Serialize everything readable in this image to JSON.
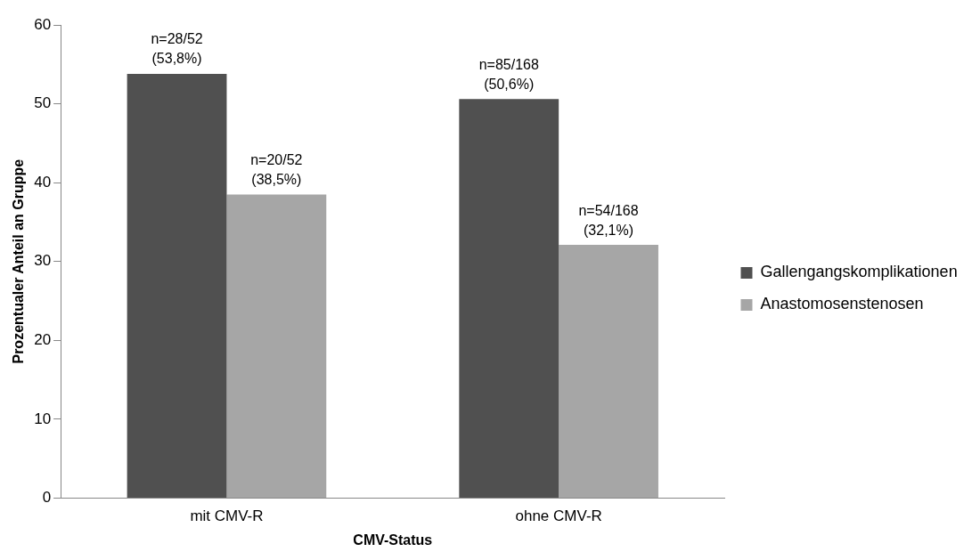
{
  "chart_data": {
    "type": "bar",
    "xlabel": "CMV-Status",
    "ylabel": "Prozentualer Anteil an Gruppe",
    "categories": [
      "mit CMV-R",
      "ohne CMV-R"
    ],
    "series": [
      {
        "name": "Gallengangskomplikationen",
        "color": "#505050",
        "values": [
          53.8,
          50.6
        ],
        "value_labels": [
          "n=28/52\n(53,8%)",
          "n=85/168\n(50,6%)"
        ]
      },
      {
        "name": "Anastomosenstenosen",
        "color": "#a6a6a6",
        "values": [
          38.5,
          32.1
        ],
        "value_labels": [
          "n=20/52\n(38,5%)",
          "n=54/168\n(32,1%)"
        ]
      }
    ],
    "ylim": [
      0,
      60
    ],
    "yticks": [
      0,
      10,
      20,
      30,
      40,
      50,
      60
    ],
    "grid": false,
    "legend": "right"
  }
}
